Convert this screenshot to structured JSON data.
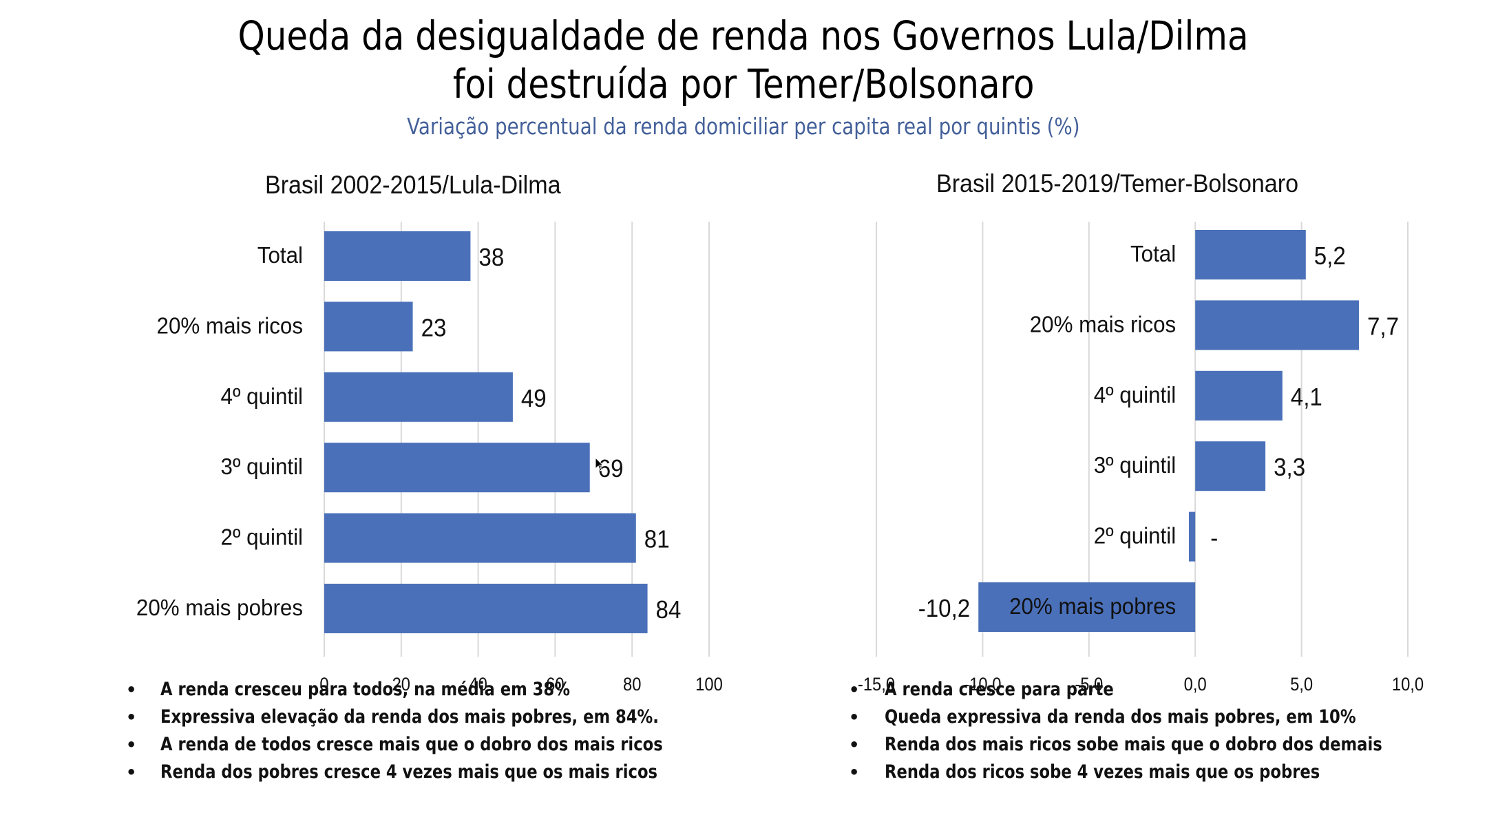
{
  "header": {
    "title_line1": "Queda da desigualdade de renda nos Governos Lula/Dilma",
    "title_line2": "foi destruída por Temer/Bolsonaro",
    "subtitle": "Variação percentual da renda domiciliar per capita real por quintis (%)"
  },
  "colors": {
    "bar": "#4a70b9",
    "subtitle": "#44609a",
    "gridline": "#d9d9d9",
    "text": "#111111"
  },
  "chart_data": [
    {
      "type": "bar",
      "orientation": "horizontal",
      "title": "Brasil 2002-2015/Lula-Dilma",
      "categories": [
        "Total",
        "20% mais ricos",
        "4º quintil",
        "3º quintil",
        "2º quintil",
        "20% mais pobres"
      ],
      "values": [
        38,
        23,
        49,
        69,
        81,
        84
      ],
      "value_labels": [
        "38",
        "23",
        "49",
        "69",
        "81",
        "84"
      ],
      "xlabel": "",
      "ylabel": "",
      "xlim": [
        0,
        100
      ],
      "xticks": [
        0,
        20,
        40,
        60,
        80,
        100
      ],
      "xtick_labels": [
        "0",
        "20",
        "40",
        "60",
        "80",
        "100"
      ],
      "grid": "vertical",
      "legend": "none"
    },
    {
      "type": "bar",
      "orientation": "horizontal",
      "title": "Brasil 2015-2019/Temer-Bolsonaro",
      "categories": [
        "Total",
        "20% mais ricos",
        "4º quintil",
        "3º quintil",
        "2º quintil",
        "20% mais pobres"
      ],
      "values": [
        5.2,
        7.7,
        4.1,
        3.3,
        -0.3,
        -10.2
      ],
      "value_labels": [
        "5,2",
        "7,7",
        "4,1",
        "3,3",
        "-",
        "-10,2"
      ],
      "xlabel": "",
      "ylabel": "",
      "xlim": [
        -15,
        10
      ],
      "xticks": [
        -15,
        -10,
        -5,
        0,
        5,
        10
      ],
      "xtick_labels": [
        "-15,0",
        "-10,0",
        "-5,0",
        "0,0",
        "5,0",
        "10,0"
      ],
      "grid": "vertical",
      "legend": "none"
    }
  ],
  "bullets": {
    "left": [
      "A renda cresceu para todos, na média em 38%",
      "Expressiva elevação da renda dos mais pobres, em 84%.",
      "A renda de todos cresce mais que o dobro dos mais ricos",
      "Renda dos pobres cresce 4 vezes mais que os mais ricos"
    ],
    "right": [
      "A renda cresce para parte",
      "Queda expressiva da renda dos mais pobres, em 10%",
      "Renda dos mais ricos sobe mais que o dobro dos demais",
      "Renda dos ricos sobe 4 vezes mais que os pobres"
    ],
    "bullet_glyph": "•"
  },
  "cursor": {
    "icon": "mouse-pointer-icon"
  }
}
